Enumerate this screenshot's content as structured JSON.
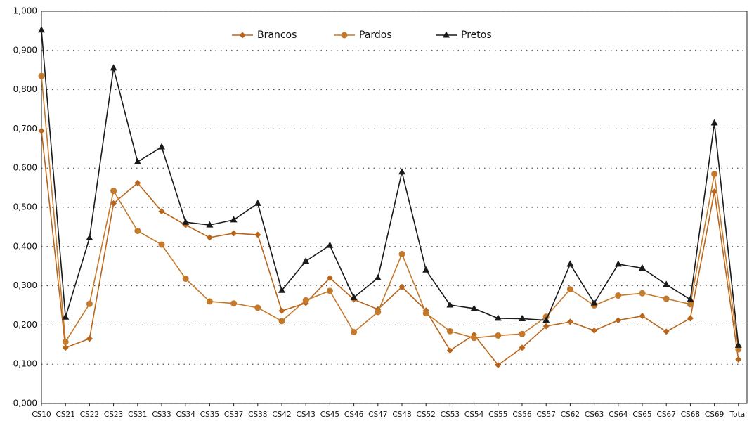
{
  "chart_data": {
    "type": "line",
    "categories": [
      "CS10",
      "CS21",
      "CS22",
      "CS23",
      "CS31",
      "CS33",
      "CS34",
      "CS35",
      "CS37",
      "CS38",
      "CS42",
      "CS43",
      "CS45",
      "CS46",
      "CS47",
      "CS48",
      "CS52",
      "CS53",
      "CS54",
      "CS55",
      "CS56",
      "CS57",
      "CS62",
      "CS63",
      "CS64",
      "CS65",
      "CS67",
      "CS68",
      "CS69",
      "Total"
    ],
    "series": [
      {
        "name": "Brancos",
        "color": "#b8651b",
        "marker": "diamond",
        "values": [
          0.695,
          0.142,
          0.165,
          0.51,
          0.562,
          0.49,
          0.455,
          0.423,
          0.434,
          0.43,
          0.236,
          0.256,
          0.32,
          0.265,
          0.24,
          0.297,
          0.237,
          0.135,
          0.175,
          0.098,
          0.142,
          0.197,
          0.208,
          0.186,
          0.212,
          0.223,
          0.183,
          0.217,
          0.54,
          0.112
        ]
      },
      {
        "name": "Pardos",
        "color": "#c47a2c",
        "marker": "circle",
        "values": [
          0.835,
          0.157,
          0.254,
          0.542,
          0.44,
          0.405,
          0.318,
          0.26,
          0.255,
          0.244,
          0.21,
          0.263,
          0.287,
          0.182,
          0.233,
          0.381,
          0.23,
          0.184,
          0.167,
          0.173,
          0.177,
          0.221,
          0.291,
          0.25,
          0.275,
          0.281,
          0.267,
          0.253,
          0.585,
          0.138
        ]
      },
      {
        "name": "Pretos",
        "color": "#1a1a1a",
        "marker": "triangle",
        "values": [
          0.952,
          0.22,
          0.422,
          0.855,
          0.616,
          0.654,
          0.462,
          0.455,
          0.468,
          0.51,
          0.288,
          0.363,
          0.403,
          0.27,
          0.32,
          0.59,
          0.34,
          0.251,
          0.242,
          0.217,
          0.216,
          0.212,
          0.355,
          0.256,
          0.355,
          0.345,
          0.303,
          0.265,
          0.715,
          0.148
        ]
      }
    ],
    "ylim": [
      0,
      1
    ],
    "yticks": [
      {
        "value": 0,
        "label": "0,000"
      },
      {
        "value": 0.1,
        "label": "0,100"
      },
      {
        "value": 0.2,
        "label": "0,200"
      },
      {
        "value": 0.3,
        "label": "0,300"
      },
      {
        "value": 0.4,
        "label": "0,400"
      },
      {
        "value": 0.5,
        "label": "0,500"
      },
      {
        "value": 0.6,
        "label": "0,600"
      },
      {
        "value": 0.7,
        "label": "0,700"
      },
      {
        "value": 0.8,
        "label": "0,800"
      },
      {
        "value": 0.9,
        "label": "0,900"
      },
      {
        "value": 1,
        "label": "1,000"
      }
    ],
    "grid": true,
    "legend": "top"
  }
}
